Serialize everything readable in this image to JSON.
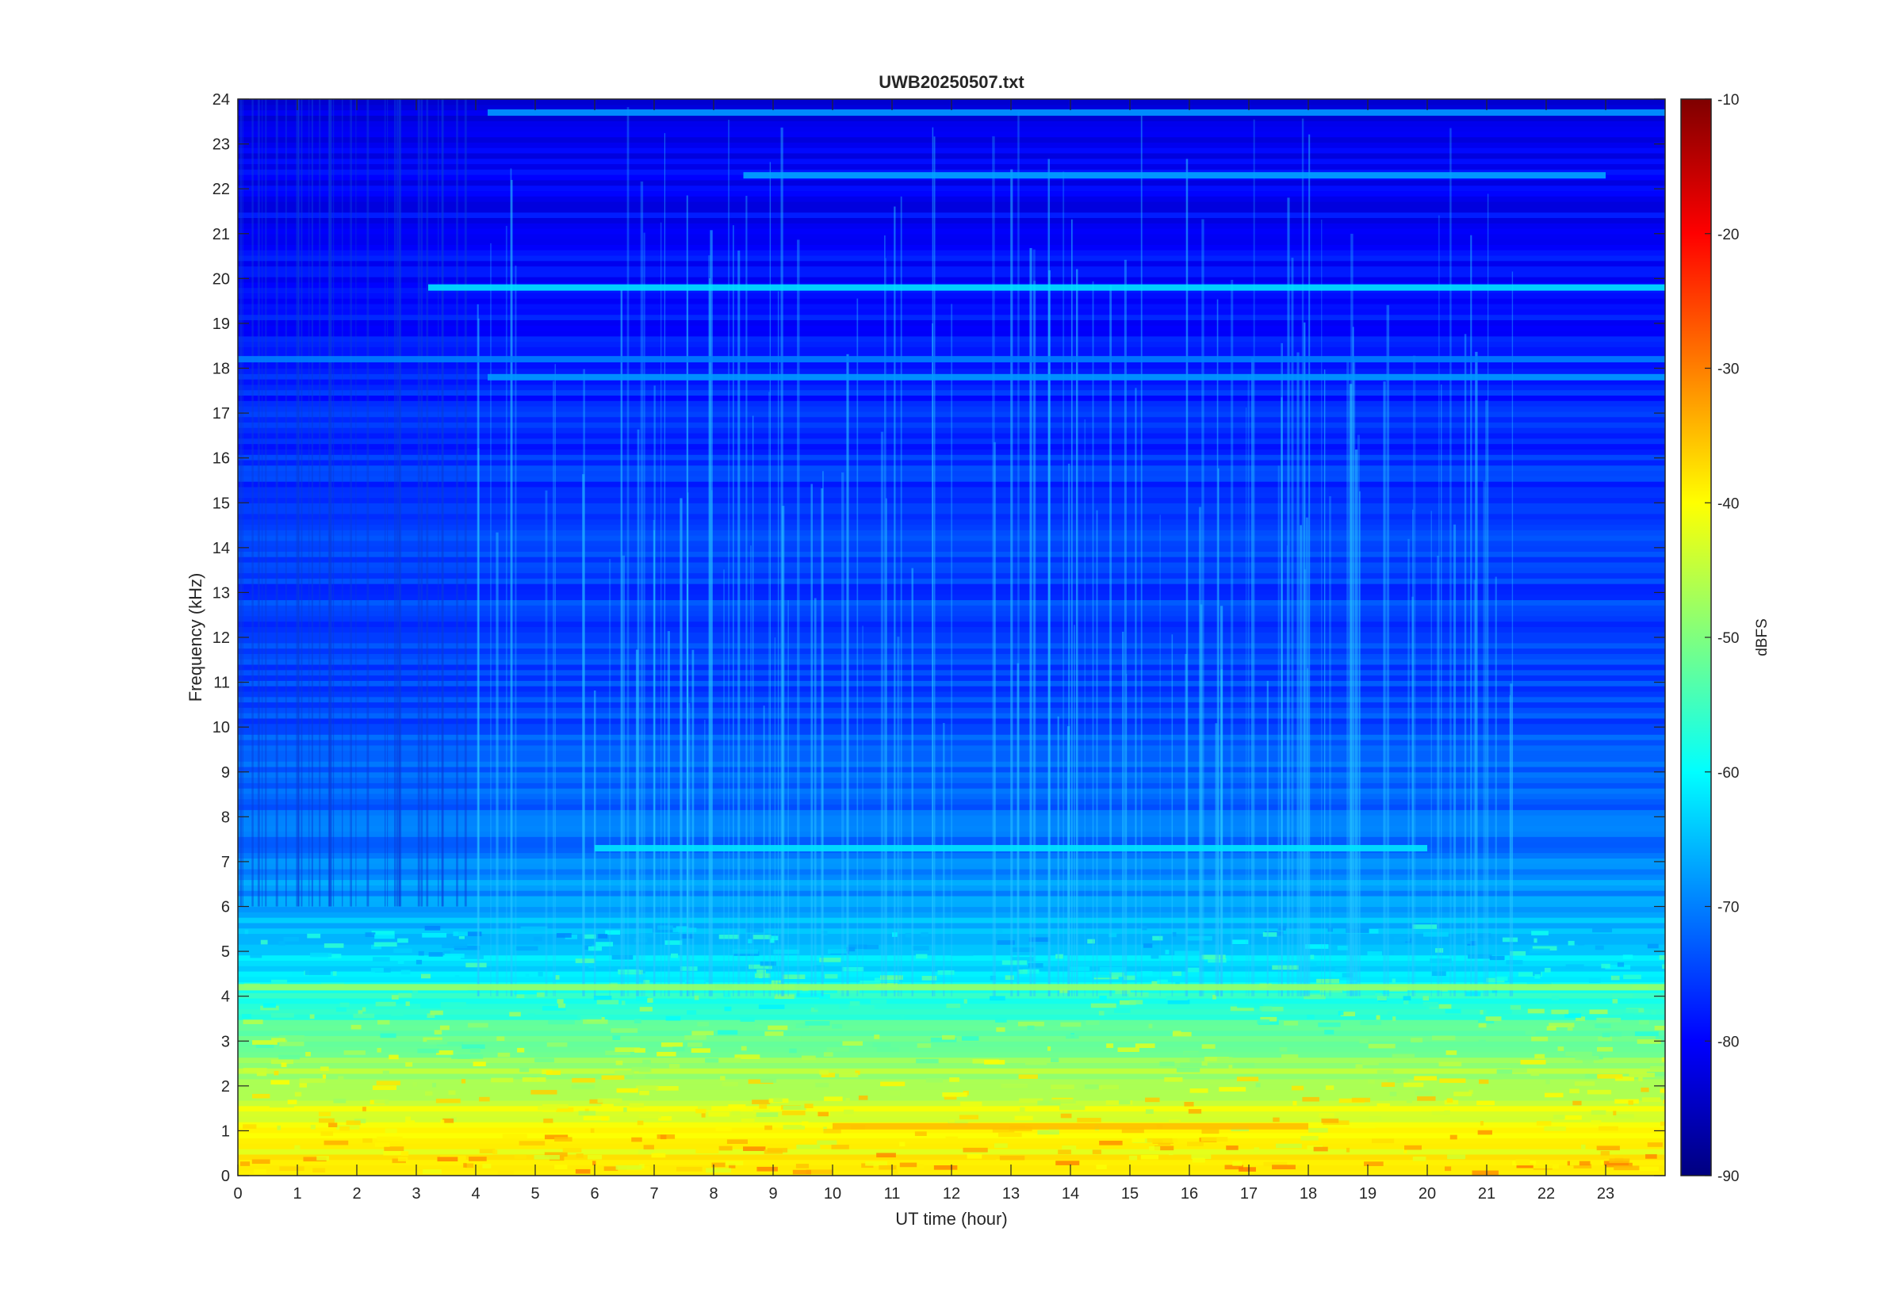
{
  "chart_data": {
    "type": "heatmap",
    "title": "UWB20250507.txt",
    "xlabel": "UT time (hour)",
    "ylabel": "Frequency (kHz)",
    "xlim": [
      0,
      24
    ],
    "ylim": [
      0,
      24
    ],
    "xticks": [
      0,
      1,
      2,
      3,
      4,
      5,
      6,
      7,
      8,
      9,
      10,
      11,
      12,
      13,
      14,
      15,
      16,
      17,
      18,
      19,
      20,
      21,
      22,
      23
    ],
    "yticks": [
      0,
      1,
      2,
      3,
      4,
      5,
      6,
      7,
      8,
      9,
      10,
      11,
      12,
      13,
      14,
      15,
      16,
      17,
      18,
      19,
      20,
      21,
      22,
      23,
      24
    ],
    "colorbar": {
      "label": "dBFS",
      "range": [
        -90,
        -10
      ],
      "ticks": [
        -10,
        -20,
        -30,
        -40,
        -50,
        -60,
        -70,
        -80,
        -90
      ],
      "colormap": "jet"
    },
    "colormap_stops": [
      "#00007f",
      "#0000ff",
      "#007fff",
      "#00ffff",
      "#7fff7f",
      "#ffff00",
      "#ff7f00",
      "#ff0000",
      "#7f0000"
    ],
    "background_level_profile": [
      {
        "freq_khz": 0.0,
        "dbfs": -38
      },
      {
        "freq_khz": 1.0,
        "dbfs": -41
      },
      {
        "freq_khz": 2.0,
        "dbfs": -45
      },
      {
        "freq_khz": 3.0,
        "dbfs": -52
      },
      {
        "freq_khz": 4.0,
        "dbfs": -58
      },
      {
        "freq_khz": 5.0,
        "dbfs": -64
      },
      {
        "freq_khz": 7.0,
        "dbfs": -70
      },
      {
        "freq_khz": 10.0,
        "dbfs": -74
      },
      {
        "freq_khz": 15.0,
        "dbfs": -76
      },
      {
        "freq_khz": 20.0,
        "dbfs": -79
      },
      {
        "freq_khz": 24.0,
        "dbfs": -82
      }
    ],
    "narrowband_signals": [
      {
        "freq_khz": 19.8,
        "start_hour": 3.2,
        "end_hour": 24.0,
        "dbfs": -62
      },
      {
        "freq_khz": 18.2,
        "start_hour": 0.0,
        "end_hour": 24.0,
        "dbfs": -70
      },
      {
        "freq_khz": 17.8,
        "start_hour": 4.2,
        "end_hour": 24.0,
        "dbfs": -68
      },
      {
        "freq_khz": 22.3,
        "start_hour": 8.5,
        "end_hour": 23.0,
        "dbfs": -67
      },
      {
        "freq_khz": 23.7,
        "start_hour": 4.2,
        "end_hour": 24.0,
        "dbfs": -68
      },
      {
        "freq_khz": 7.3,
        "start_hour": 6.0,
        "end_hour": 20.0,
        "dbfs": -62
      },
      {
        "freq_khz": 4.2,
        "start_hour": 0.0,
        "end_hour": 24.0,
        "dbfs": -48
      },
      {
        "freq_khz": 1.1,
        "start_hour": 10.0,
        "end_hour": 18.0,
        "dbfs": -35
      }
    ]
  }
}
